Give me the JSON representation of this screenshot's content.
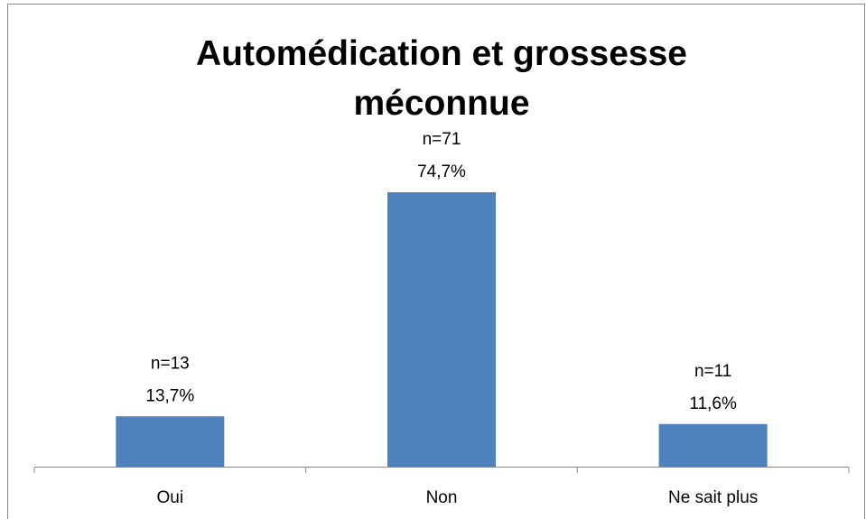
{
  "chart_data": {
    "type": "bar",
    "title": "Automédication et grossesse méconnue",
    "categories": [
      "Oui",
      "Non",
      "Ne sait plus"
    ],
    "values": [
      13.7,
      74.7,
      11.6
    ],
    "value_labels": [
      "13,7%",
      "74,7%",
      "11,6%"
    ],
    "counts": [
      13,
      71,
      11
    ],
    "count_labels": [
      "n=13",
      "n=71",
      "n=11"
    ],
    "color": "#4f81bd"
  }
}
